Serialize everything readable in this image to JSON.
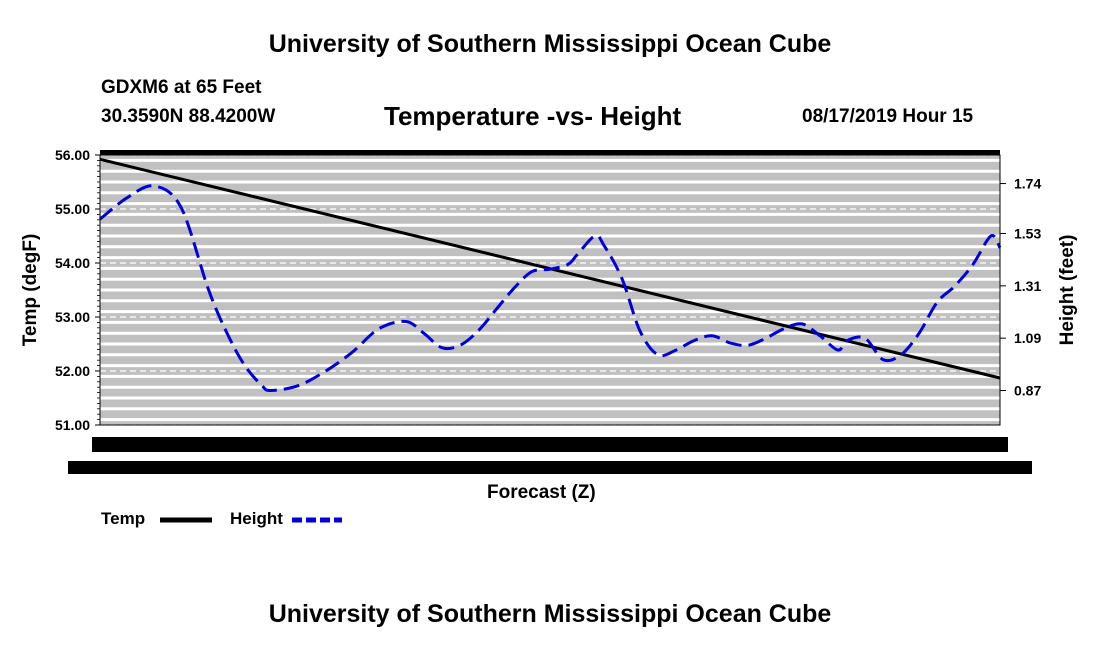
{
  "header": {
    "title": "University of Southern Mississippi Ocean Cube",
    "station": "GDXM6 at 65 Feet",
    "coordinates": "30.3590N 88.4200W",
    "datetime": "08/17/2019 Hour 15"
  },
  "footer": {
    "title": "University of Southern Mississippi Ocean Cube"
  },
  "colors": {
    "temp": "#000000",
    "height": "#0000dd",
    "plot_background": "#c0c0c0",
    "grid": "#ffffff"
  },
  "chart_data": {
    "type": "line",
    "title": "Temperature -vs- Height",
    "xlabel": "Forecast (Z)",
    "ylabel_left": "Temp (degF)",
    "ylabel_right": "Height (feet)",
    "ylim_left": [
      51.0,
      56.0
    ],
    "ylim_right": [
      0.725,
      1.86
    ],
    "y_ticks_left": [
      "51.00",
      "52.00",
      "53.00",
      "54.00",
      "55.00",
      "56.00"
    ],
    "y_ticks_right": [
      "0.87",
      "1.09",
      "1.31",
      "1.53",
      "1.74"
    ],
    "x_range": [
      0,
      100
    ],
    "grid": true,
    "legend_position": "bottom-left",
    "series": [
      {
        "name": "Temp",
        "axis": "left",
        "style": "solid",
        "x": [
          0,
          100
        ],
        "values": [
          55.92,
          51.87
        ]
      },
      {
        "name": "Height",
        "axis": "right",
        "style": "dashed",
        "x": [
          0,
          3,
          6,
          9,
          12,
          14,
          16,
          18,
          19,
          22,
          25,
          28,
          31,
          34,
          36,
          38,
          40,
          42,
          44,
          46,
          48,
          50,
          52,
          53,
          55,
          56,
          58,
          60,
          62,
          64,
          66,
          68,
          70,
          72,
          74,
          76,
          78,
          80,
          82,
          83,
          85,
          87,
          89,
          91,
          93,
          95,
          97,
          99,
          100
        ],
        "values": [
          1.59,
          1.68,
          1.73,
          1.64,
          1.3,
          1.12,
          0.98,
          0.89,
          0.87,
          0.89,
          0.95,
          1.03,
          1.13,
          1.16,
          1.11,
          1.05,
          1.06,
          1.12,
          1.21,
          1.3,
          1.37,
          1.38,
          1.4,
          1.44,
          1.52,
          1.48,
          1.34,
          1.12,
          1.02,
          1.04,
          1.08,
          1.1,
          1.07,
          1.06,
          1.09,
          1.13,
          1.15,
          1.1,
          1.04,
          1.08,
          1.09,
          1.0,
          1.02,
          1.11,
          1.24,
          1.31,
          1.4,
          1.52,
          1.47
        ]
      }
    ]
  }
}
